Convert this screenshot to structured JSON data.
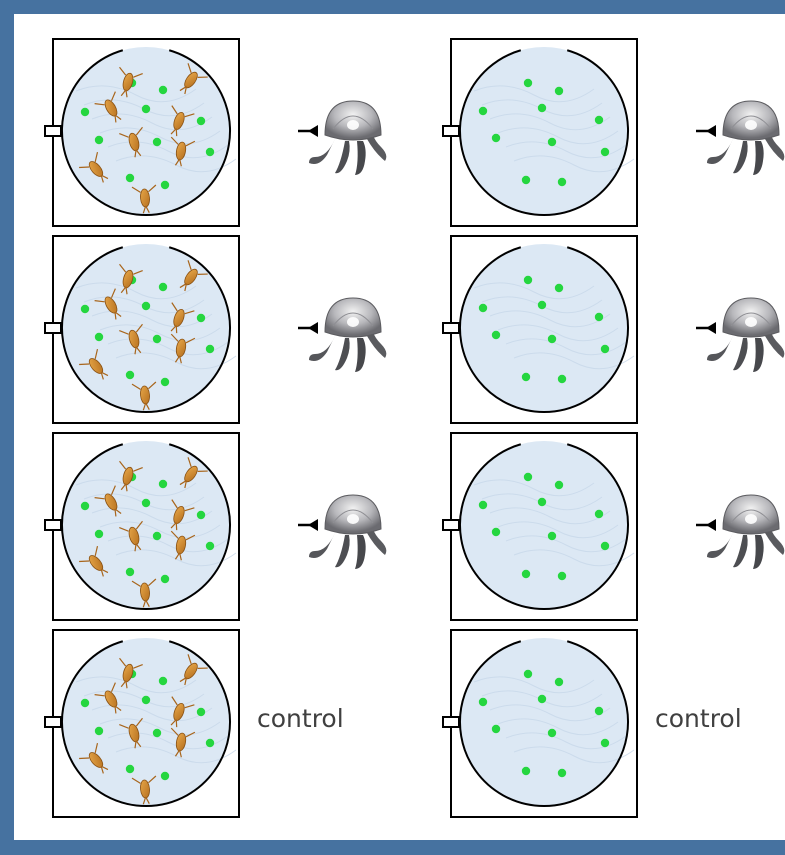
{
  "colors": {
    "frame": "#4672a0",
    "panel": "#ffffff",
    "tank_water": "#dce8f4",
    "algae_dot": "#25d63f",
    "copepod": "#c9862d",
    "arrow": "#000000",
    "label_text": "#404040"
  },
  "icons": {
    "jellyfish": "jellyfish-icon",
    "copepod": "copepod-icon",
    "algae": "algae-dot",
    "arrow": "arrow-left-icon"
  },
  "columns": [
    {
      "id": "with-copepods",
      "copepods_present": true,
      "rows": [
        {
          "treatment": "jellyfish"
        },
        {
          "treatment": "jellyfish"
        },
        {
          "treatment": "jellyfish"
        },
        {
          "treatment": "control",
          "label": "control"
        }
      ]
    },
    {
      "id": "algae-only",
      "copepods_present": false,
      "rows": [
        {
          "treatment": "jellyfish"
        },
        {
          "treatment": "jellyfish"
        },
        {
          "treatment": "jellyfish"
        },
        {
          "treatment": "control",
          "label": "control"
        }
      ]
    }
  ]
}
